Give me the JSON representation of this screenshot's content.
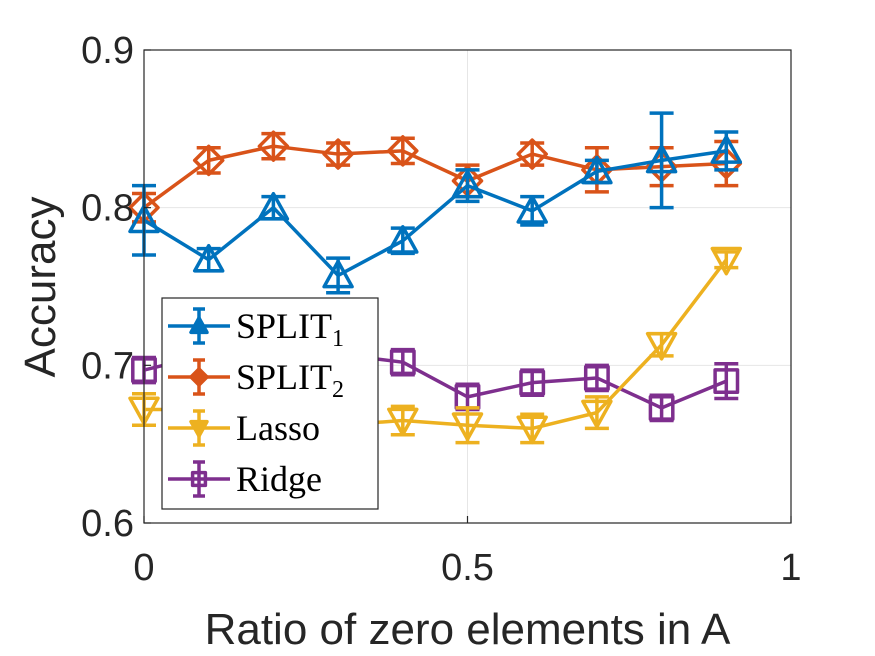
{
  "chart_data": {
    "type": "line",
    "xlabel": "Ratio of zero elements in A",
    "ylabel": "Accuracy",
    "xlim": [
      0,
      1
    ],
    "ylim": [
      0.6,
      0.9
    ],
    "xticks": [
      "0",
      "0.5",
      "1"
    ],
    "yticks": [
      "0.6",
      "0.7",
      "0.8",
      "0.9"
    ],
    "grid": true,
    "legend_position": "bottom-left",
    "x": [
      0,
      0.1,
      0.2,
      0.3,
      0.4,
      0.5,
      0.6,
      0.7,
      0.8,
      0.9
    ],
    "series": [
      {
        "name": "SPLIT",
        "name_sub": "1",
        "color": "#0072BD",
        "marker": "triangle-up",
        "y": [
          0.792,
          0.767,
          0.8,
          0.757,
          0.779,
          0.814,
          0.798,
          0.823,
          0.83,
          0.836
        ],
        "err": [
          0.022,
          0.007,
          0.007,
          0.011,
          0.008,
          0.01,
          0.009,
          0.007,
          0.03,
          0.012
        ]
      },
      {
        "name": "SPLIT",
        "name_sub": "2",
        "color": "#D95319",
        "marker": "diamond",
        "y": [
          0.8,
          0.83,
          0.839,
          0.834,
          0.836,
          0.817,
          0.834,
          0.824,
          0.826,
          0.828
        ],
        "err": [
          0.009,
          0.008,
          0.008,
          0.007,
          0.008,
          0.01,
          0.007,
          0.014,
          0.012,
          0.014
        ]
      },
      {
        "name": "Lasso",
        "color": "#EDB120",
        "marker": "triangle-down",
        "y": [
          0.672,
          0.672,
          0.667,
          0.662,
          0.665,
          0.662,
          0.66,
          0.67,
          0.713,
          0.767
        ],
        "err": [
          0.01,
          0.008,
          0.008,
          0.008,
          0.009,
          0.011,
          0.009,
          0.01,
          0.007,
          0.005
        ]
      },
      {
        "name": "Ridge",
        "color": "#7E2F8E",
        "marker": "square",
        "y": [
          0.697,
          0.707,
          0.71,
          0.707,
          0.702,
          0.68,
          0.689,
          0.692,
          0.673,
          0.69
        ],
        "err": [
          0.008,
          0.008,
          0.008,
          0.008,
          0.008,
          0.008,
          0.008,
          0.008,
          0.008,
          0.011
        ]
      }
    ]
  }
}
